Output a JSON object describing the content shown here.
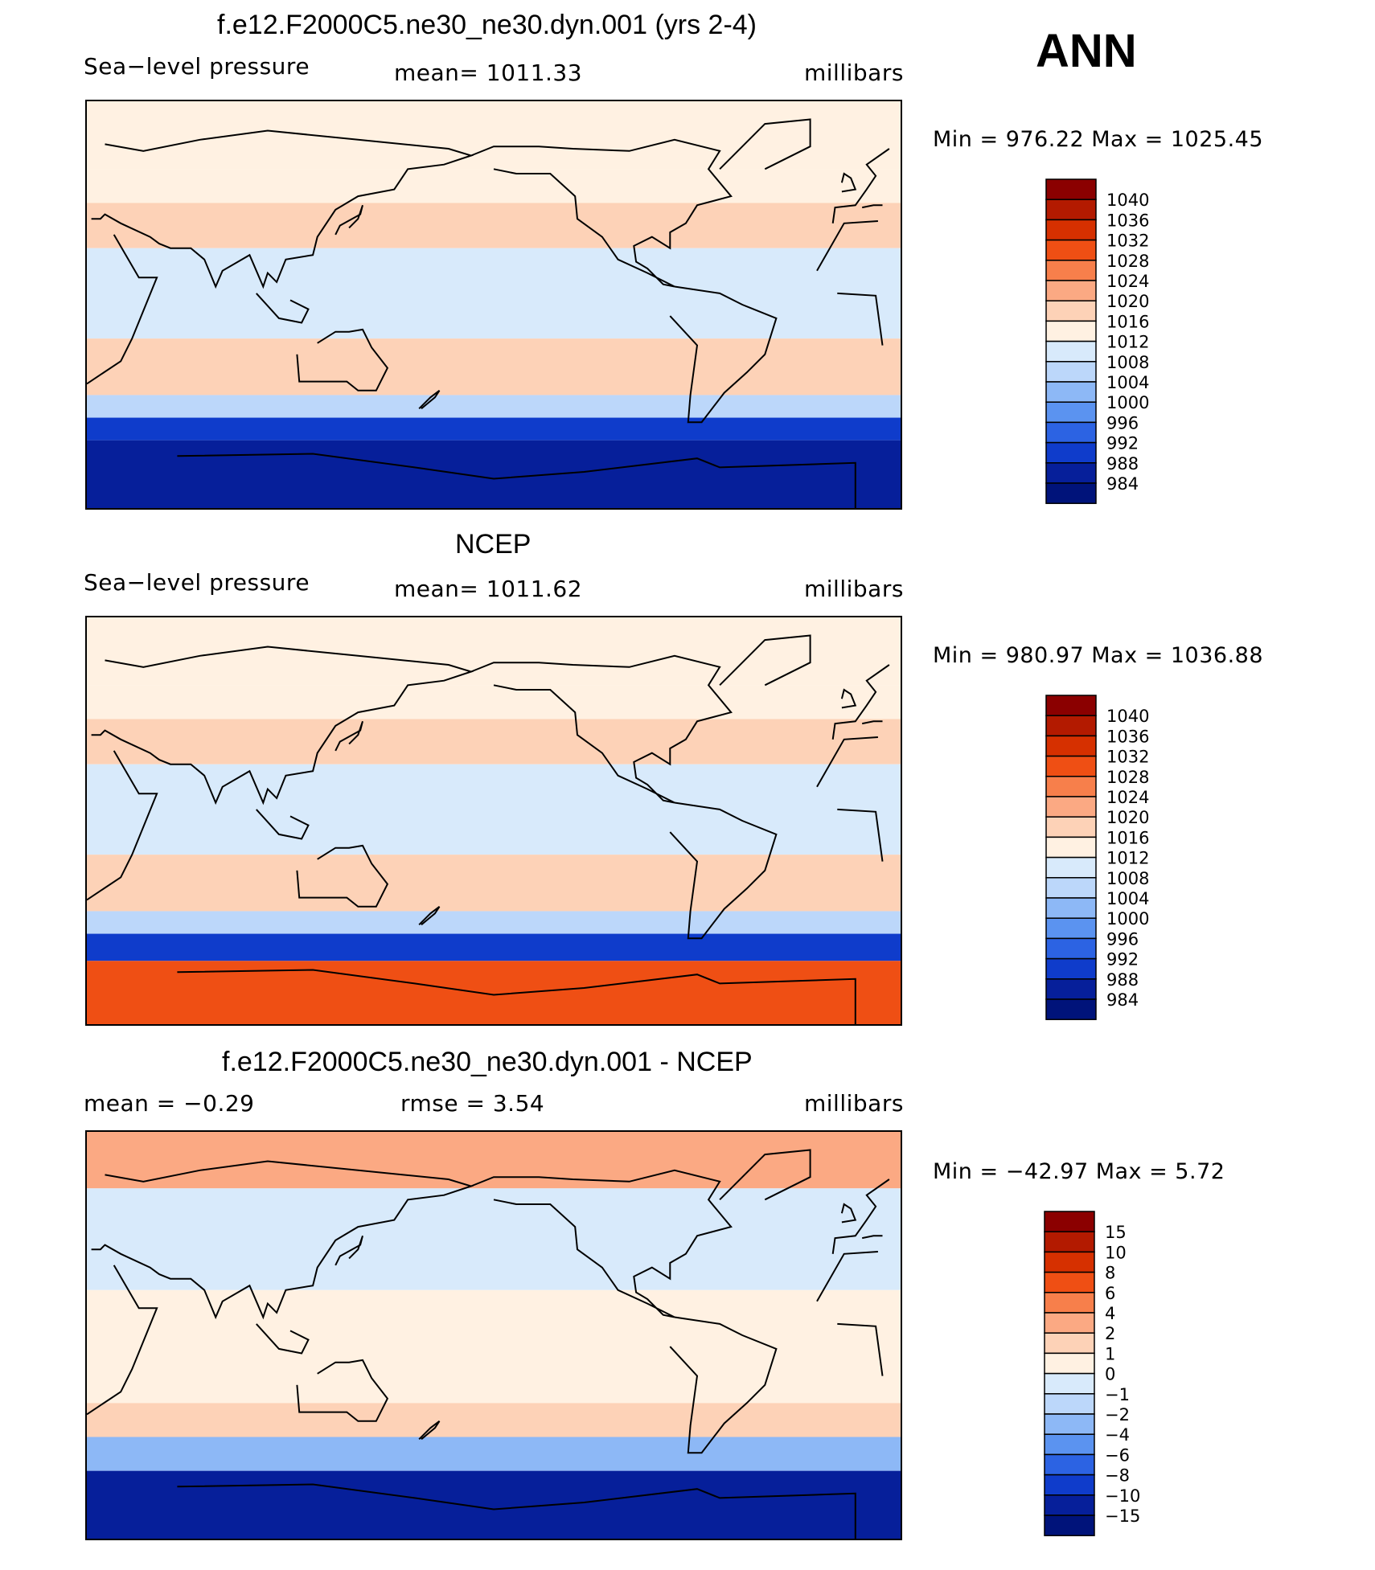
{
  "season": "ANN",
  "panels": [
    {
      "title": "f.e12.F2000C5.ne30_ne30.dyn.001 (yrs 2-4)",
      "left": "Sea−level pressure",
      "center": "mean=  1011.33",
      "right": "millibars",
      "minmax": "Min  =  976.22  Max  =  1025.45",
      "legend": [
        "1040",
        "1036",
        "1032",
        "1028",
        "1024",
        "1020",
        "1016",
        "1012",
        "1008",
        "1004",
        "1000",
        "996",
        "992",
        "988",
        "984"
      ],
      "colors": [
        "#8b0000",
        "#b31a00",
        "#d63000",
        "#ef4f14",
        "#f77f4b",
        "#fba983",
        "#fdd2b7",
        "#fff1e2",
        "#d8eafb",
        "#bcd7fa",
        "#8db8f6",
        "#5b93f0",
        "#2c63e3",
        "#0f3ccb",
        "#061f9a",
        "#00137a"
      ],
      "map_bands": [
        {
          "lat_from": 90,
          "lat_to": 60,
          "value": 1012
        },
        {
          "lat_from": 60,
          "lat_to": 45,
          "value": 1014
        },
        {
          "lat_from": 45,
          "lat_to": 25,
          "value": 1018
        },
        {
          "lat_from": 25,
          "lat_to": -15,
          "value": 1010
        },
        {
          "lat_from": -15,
          "lat_to": -40,
          "value": 1018
        },
        {
          "lat_from": -40,
          "lat_to": -50,
          "value": 1006
        },
        {
          "lat_from": -50,
          "lat_to": -60,
          "value": 990
        },
        {
          "lat_from": -60,
          "lat_to": -90,
          "value": 984
        }
      ]
    },
    {
      "title": "NCEP",
      "left": "Sea−level pressure",
      "center": "mean=  1011.62",
      "right": "millibars",
      "minmax": "Min  =  980.97  Max  =  1036.88",
      "legend": [
        "1040",
        "1036",
        "1032",
        "1028",
        "1024",
        "1020",
        "1016",
        "1012",
        "1008",
        "1004",
        "1000",
        "996",
        "992",
        "988",
        "984"
      ],
      "colors": [
        "#8b0000",
        "#b31a00",
        "#d63000",
        "#ef4f14",
        "#f77f4b",
        "#fba983",
        "#fdd2b7",
        "#fff1e2",
        "#d8eafb",
        "#bcd7fa",
        "#8db8f6",
        "#5b93f0",
        "#2c63e3",
        "#0f3ccb",
        "#061f9a",
        "#00137a"
      ],
      "map_bands": [
        {
          "lat_from": 90,
          "lat_to": 60,
          "value": 1012
        },
        {
          "lat_from": 60,
          "lat_to": 45,
          "value": 1014
        },
        {
          "lat_from": 45,
          "lat_to": 25,
          "value": 1018
        },
        {
          "lat_from": 25,
          "lat_to": -15,
          "value": 1010
        },
        {
          "lat_from": -15,
          "lat_to": -40,
          "value": 1018
        },
        {
          "lat_from": -40,
          "lat_to": -50,
          "value": 1006
        },
        {
          "lat_from": -50,
          "lat_to": -62,
          "value": 988
        },
        {
          "lat_from": -62,
          "lat_to": -90,
          "value": 1030
        }
      ]
    },
    {
      "title": "f.e12.F2000C5.ne30_ne30.dyn.001 - NCEP",
      "left": "mean  =     −0.29",
      "center": "rmse  =      3.54",
      "right": "millibars",
      "minmax": "Min  =  −42.97  Max  =      5.72",
      "legend": [
        "15",
        "10",
        "8",
        "6",
        "4",
        "2",
        "1",
        "0",
        "−1",
        "−2",
        "−4",
        "−6",
        "−8",
        "−10",
        "−15"
      ],
      "colors": [
        "#8b0000",
        "#b31a00",
        "#d63000",
        "#ef4f14",
        "#f77f4b",
        "#fba983",
        "#fdd2b7",
        "#fff1e2",
        "#d8eafb",
        "#bcd7fa",
        "#8db8f6",
        "#5b93f0",
        "#2c63e3",
        "#0f3ccb",
        "#061f9a",
        "#00137a"
      ],
      "map_bands": [
        {
          "lat_from": 90,
          "lat_to": 65,
          "value": 2
        },
        {
          "lat_from": 65,
          "lat_to": 20,
          "value": -1
        },
        {
          "lat_from": 20,
          "lat_to": -30,
          "value": 0
        },
        {
          "lat_from": -30,
          "lat_to": -45,
          "value": 1
        },
        {
          "lat_from": -45,
          "lat_to": -60,
          "value": -4
        },
        {
          "lat_from": -60,
          "lat_to": -90,
          "value": -15
        }
      ]
    }
  ],
  "chart_data": [
    {
      "type": "heatmap",
      "title": "f.e12.F2000C5.ne30_ne30.dyn.001 (yrs 2-4)",
      "variable": "Sea-level pressure",
      "units": "millibars",
      "mean": 1011.33,
      "min": 976.22,
      "max": 1025.45,
      "contour_levels": [
        984,
        988,
        992,
        996,
        1000,
        1004,
        1008,
        1012,
        1016,
        1020,
        1024,
        1028,
        1032,
        1036,
        1040
      ]
    },
    {
      "type": "heatmap",
      "title": "NCEP",
      "variable": "Sea-level pressure",
      "units": "millibars",
      "mean": 1011.62,
      "min": 980.97,
      "max": 1036.88,
      "contour_levels": [
        984,
        988,
        992,
        996,
        1000,
        1004,
        1008,
        1012,
        1016,
        1020,
        1024,
        1028,
        1032,
        1036,
        1040
      ]
    },
    {
      "type": "heatmap",
      "title": "f.e12.F2000C5.ne30_ne30.dyn.001 - NCEP",
      "units": "millibars",
      "mean": -0.29,
      "rmse": 3.54,
      "min": -42.97,
      "max": 5.72,
      "contour_levels": [
        -15,
        -10,
        -8,
        -6,
        -4,
        -2,
        -1,
        0,
        1,
        2,
        4,
        6,
        8,
        10,
        15
      ]
    }
  ]
}
